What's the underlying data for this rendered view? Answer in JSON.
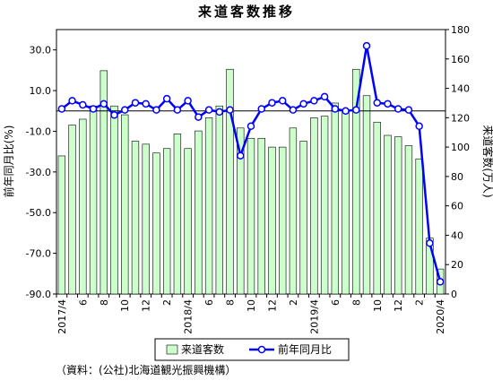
{
  "chart_data": {
    "type": "bar-line",
    "title": "来道客数推移",
    "y_label": "前年同月比(%)",
    "y2_label": "来道客数(万人)",
    "source": "（資料：(公社)北海道観光振興機構）",
    "categories": [
      "2017/4",
      null,
      "6",
      null,
      "8",
      null,
      "10",
      null,
      "12",
      null,
      "2",
      null,
      "2018/4",
      null,
      "6",
      null,
      "8",
      null,
      "10",
      null,
      "12",
      null,
      "2",
      null,
      "2019/4",
      null,
      "6",
      null,
      "8",
      null,
      "10",
      null,
      "12",
      null,
      "2",
      null,
      "2020/4"
    ],
    "series": [
      {
        "name": "来道客数",
        "type": "bar",
        "axis": "y2",
        "color": "#ccffcc",
        "values": [
          94,
          115,
          119,
          128,
          152,
          128,
          122,
          104,
          102,
          96,
          99,
          109,
          99,
          111,
          120,
          128,
          153,
          113,
          106,
          106,
          100,
          100,
          113,
          104,
          120,
          121,
          130,
          124,
          153,
          135,
          117,
          108,
          107,
          101,
          92,
          38,
          17
        ]
      },
      {
        "name": "前年同月比",
        "type": "line",
        "color": "#0000ff",
        "values": [
          1,
          5,
          3,
          1,
          3.5,
          -2,
          0.5,
          4,
          3.5,
          0.5,
          6,
          0.5,
          5,
          -3,
          0.5,
          -0.5,
          0.5,
          -22,
          -7.5,
          1,
          4,
          5,
          0.5,
          3.5,
          5,
          7,
          1,
          0,
          0.5,
          32,
          4,
          3.5,
          1,
          0.5,
          -7.5,
          -65,
          -84
        ]
      }
    ],
    "ylim": [
      -90,
      40
    ],
    "yticks": [
      {
        "value": 30,
        "label": "30.0"
      },
      {
        "value": 10,
        "label": "10.0"
      },
      {
        "value": -10,
        "label": "-10.0"
      },
      {
        "value": -30,
        "label": "-30.0"
      },
      {
        "value": -50,
        "label": "-50.0"
      },
      {
        "value": -70,
        "label": "-70.0"
      },
      {
        "value": -90,
        "label": "-90.0"
      }
    ],
    "y2lim": [
      0,
      180
    ],
    "y2ticks": [
      0,
      20,
      40,
      60,
      80,
      100,
      120,
      140,
      160,
      180
    ]
  }
}
